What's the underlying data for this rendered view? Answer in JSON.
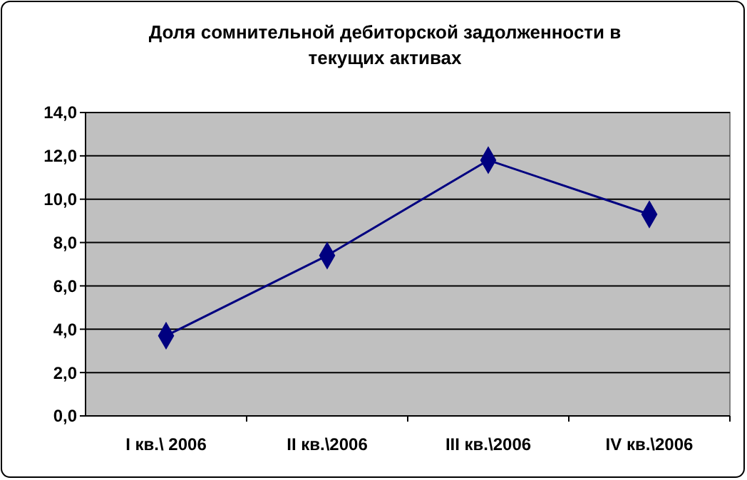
{
  "chart_data": {
    "type": "line",
    "title": "Доля сомнительной дебиторской задолженности в текущих активах",
    "categories": [
      "I кв.\\ 2006",
      "II кв.\\2006",
      "III кв.\\2006",
      "IV кв.\\2006"
    ],
    "series": [
      {
        "color": "#000080",
        "values": [
          3.7,
          7.4,
          11.8,
          9.3
        ]
      }
    ],
    "ylim": [
      0,
      14
    ],
    "yticks": [
      {
        "value": 0,
        "label": "0,0"
      },
      {
        "value": 2,
        "label": "2,0"
      },
      {
        "value": 4,
        "label": "4,0"
      },
      {
        "value": 6,
        "label": "6,0"
      },
      {
        "value": 8,
        "label": "8,0"
      },
      {
        "value": 10,
        "label": "10,0"
      },
      {
        "value": 12,
        "label": "12,0"
      },
      {
        "value": 14,
        "label": "14,0"
      }
    ],
    "grid": "y",
    "marker": "diamond",
    "line_style": "solid"
  }
}
